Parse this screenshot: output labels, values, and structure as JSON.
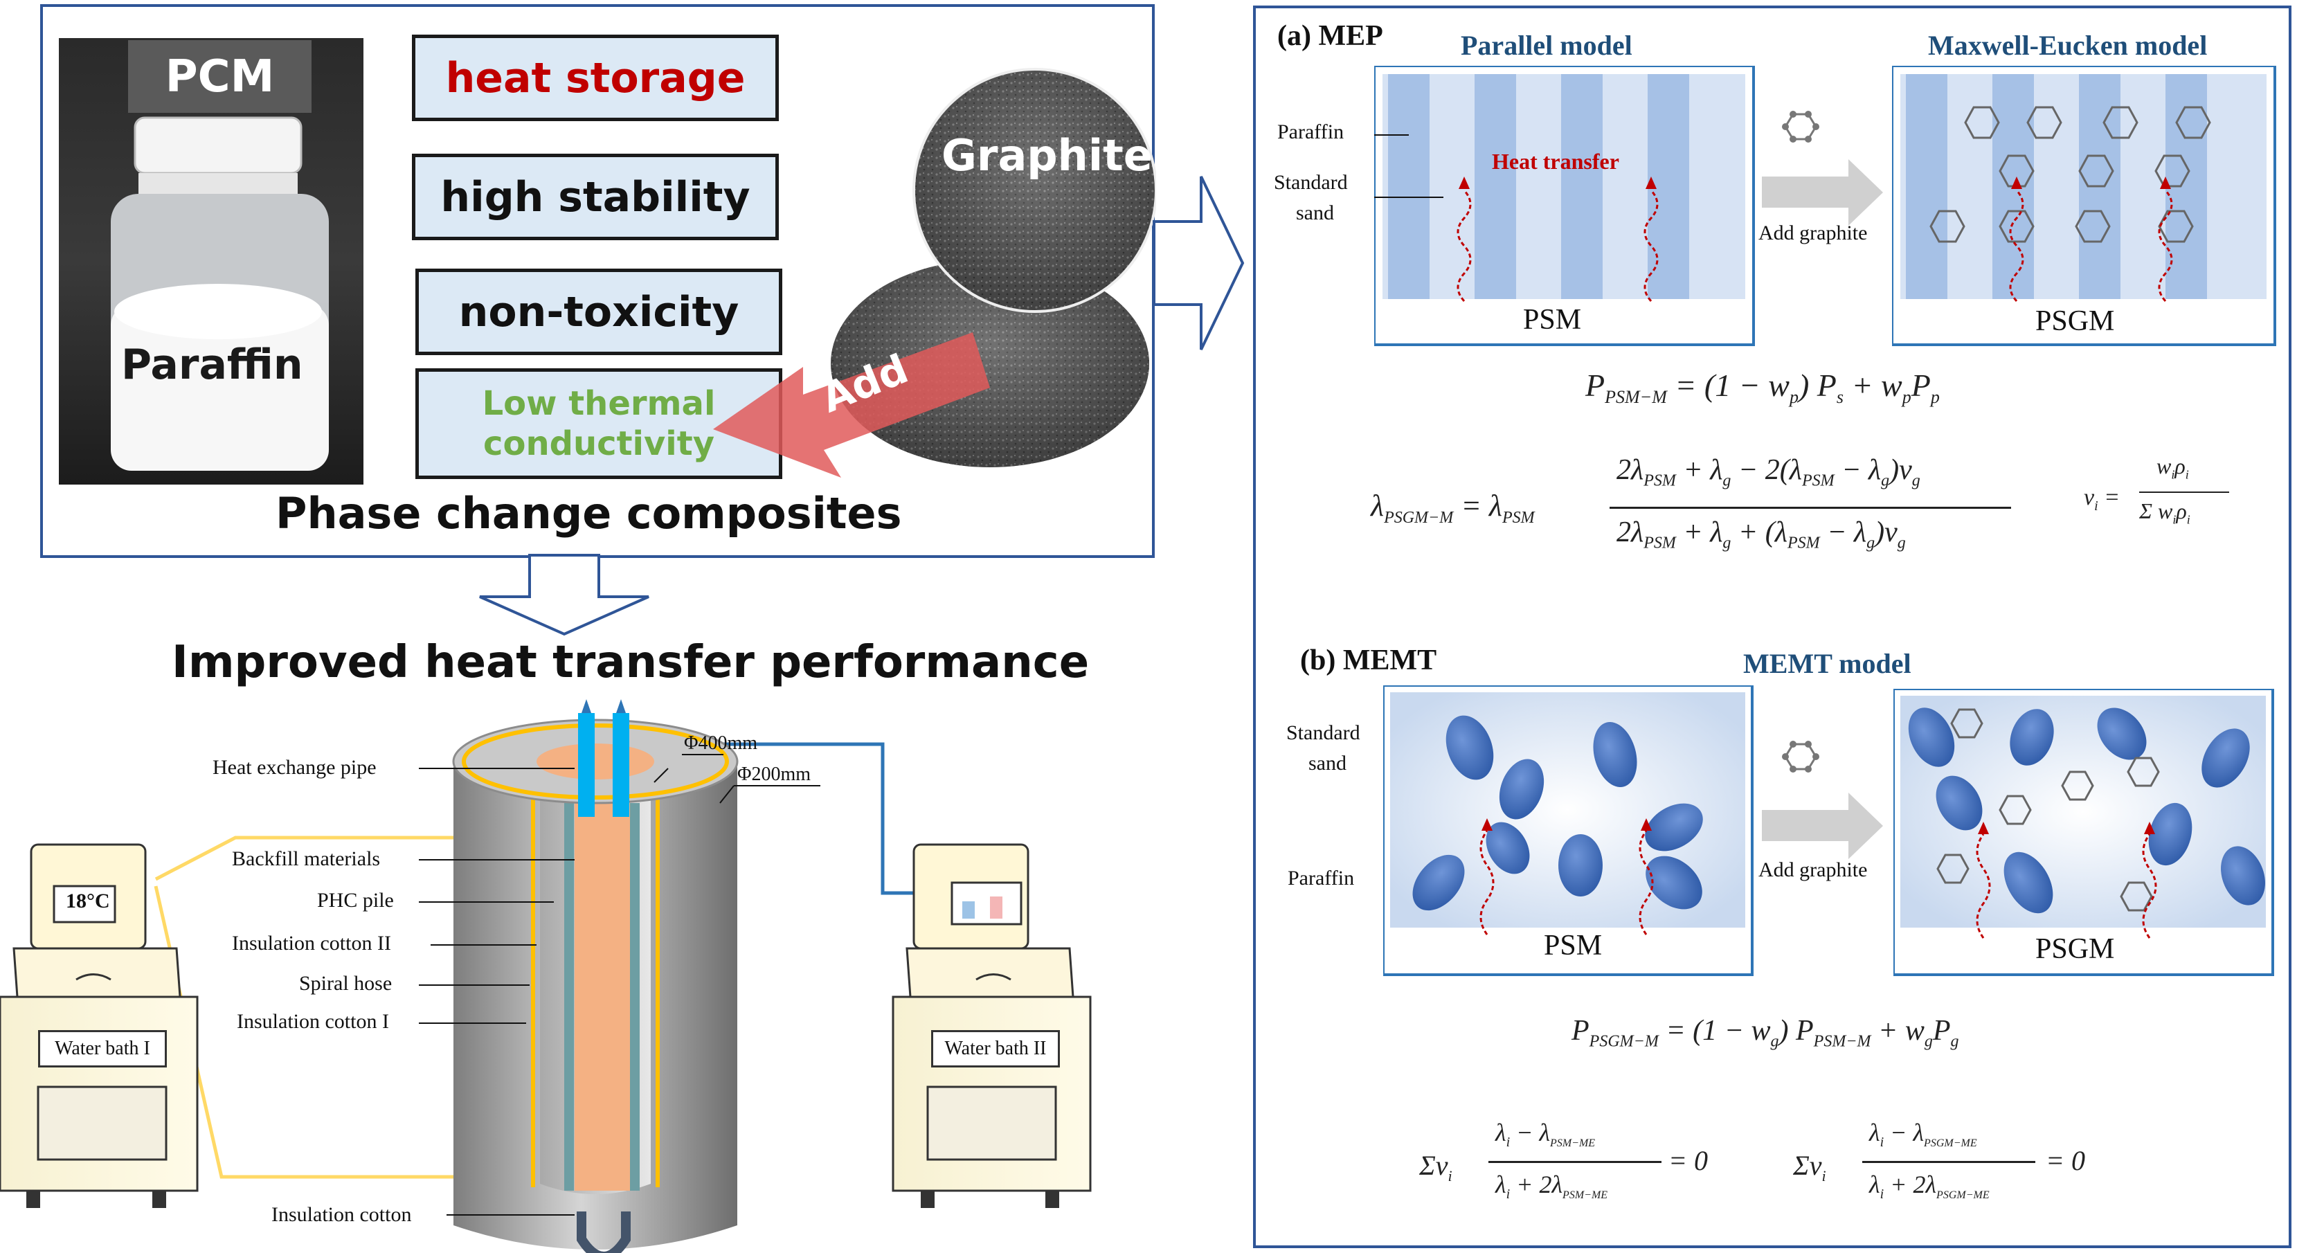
{
  "top_left": {
    "pcm_label": "PCM",
    "paraffin_label": "Paraffin",
    "graphite_label": "Graphite",
    "add_label": "Add",
    "features": [
      "heat storage",
      "high stability",
      "non-toxicity"
    ],
    "low_conductivity": [
      "Low thermal",
      "conductivity"
    ],
    "caption": "Phase change composites"
  },
  "middle": {
    "title": "Improved heat transfer performance"
  },
  "experiment": {
    "labels": [
      "Heat exchange pipe",
      "Backfill materials",
      "PHC pile",
      "Insulation cotton II",
      "Spiral hose",
      "Insulation cotton I",
      "Insulation cotton"
    ],
    "dim_outer": "Φ400mm",
    "dim_inner": "Φ200mm",
    "bath_left_temp": "18°C",
    "bath_left_name": "Water bath I",
    "bath_right_name": "Water bath II"
  },
  "mep": {
    "heading": "(a) MEP",
    "parallel_title": "Parallel model",
    "me_title": "Maxwell-Eucken model",
    "paraffin": "Paraffin",
    "sand": [
      "Standard",
      "sand"
    ],
    "heat_transfer": "Heat transfer",
    "add_graphite": "Add graphite",
    "psm": "PSM",
    "psgm": "PSGM"
  },
  "memt": {
    "heading": "(b) MEMT",
    "model_title": "MEMT model",
    "sand": [
      "Standard",
      "sand"
    ],
    "paraffin": "Paraffin",
    "add_graphite": "Add graphite",
    "psm": "PSM",
    "psgm": "PSGM"
  },
  "colors": {
    "frame": "#2f5597",
    "feature_fill": "#dce9f5",
    "heat_storage_text": "#c00000",
    "low_conductivity_text": "#70ad47",
    "add_arrow": "#e05a5a",
    "stripe_dark": "#a6c1e6",
    "stripe_light": "#d7e3f4",
    "paraffin_blob": "#4472c4",
    "heat_arrow": "#c00000"
  }
}
